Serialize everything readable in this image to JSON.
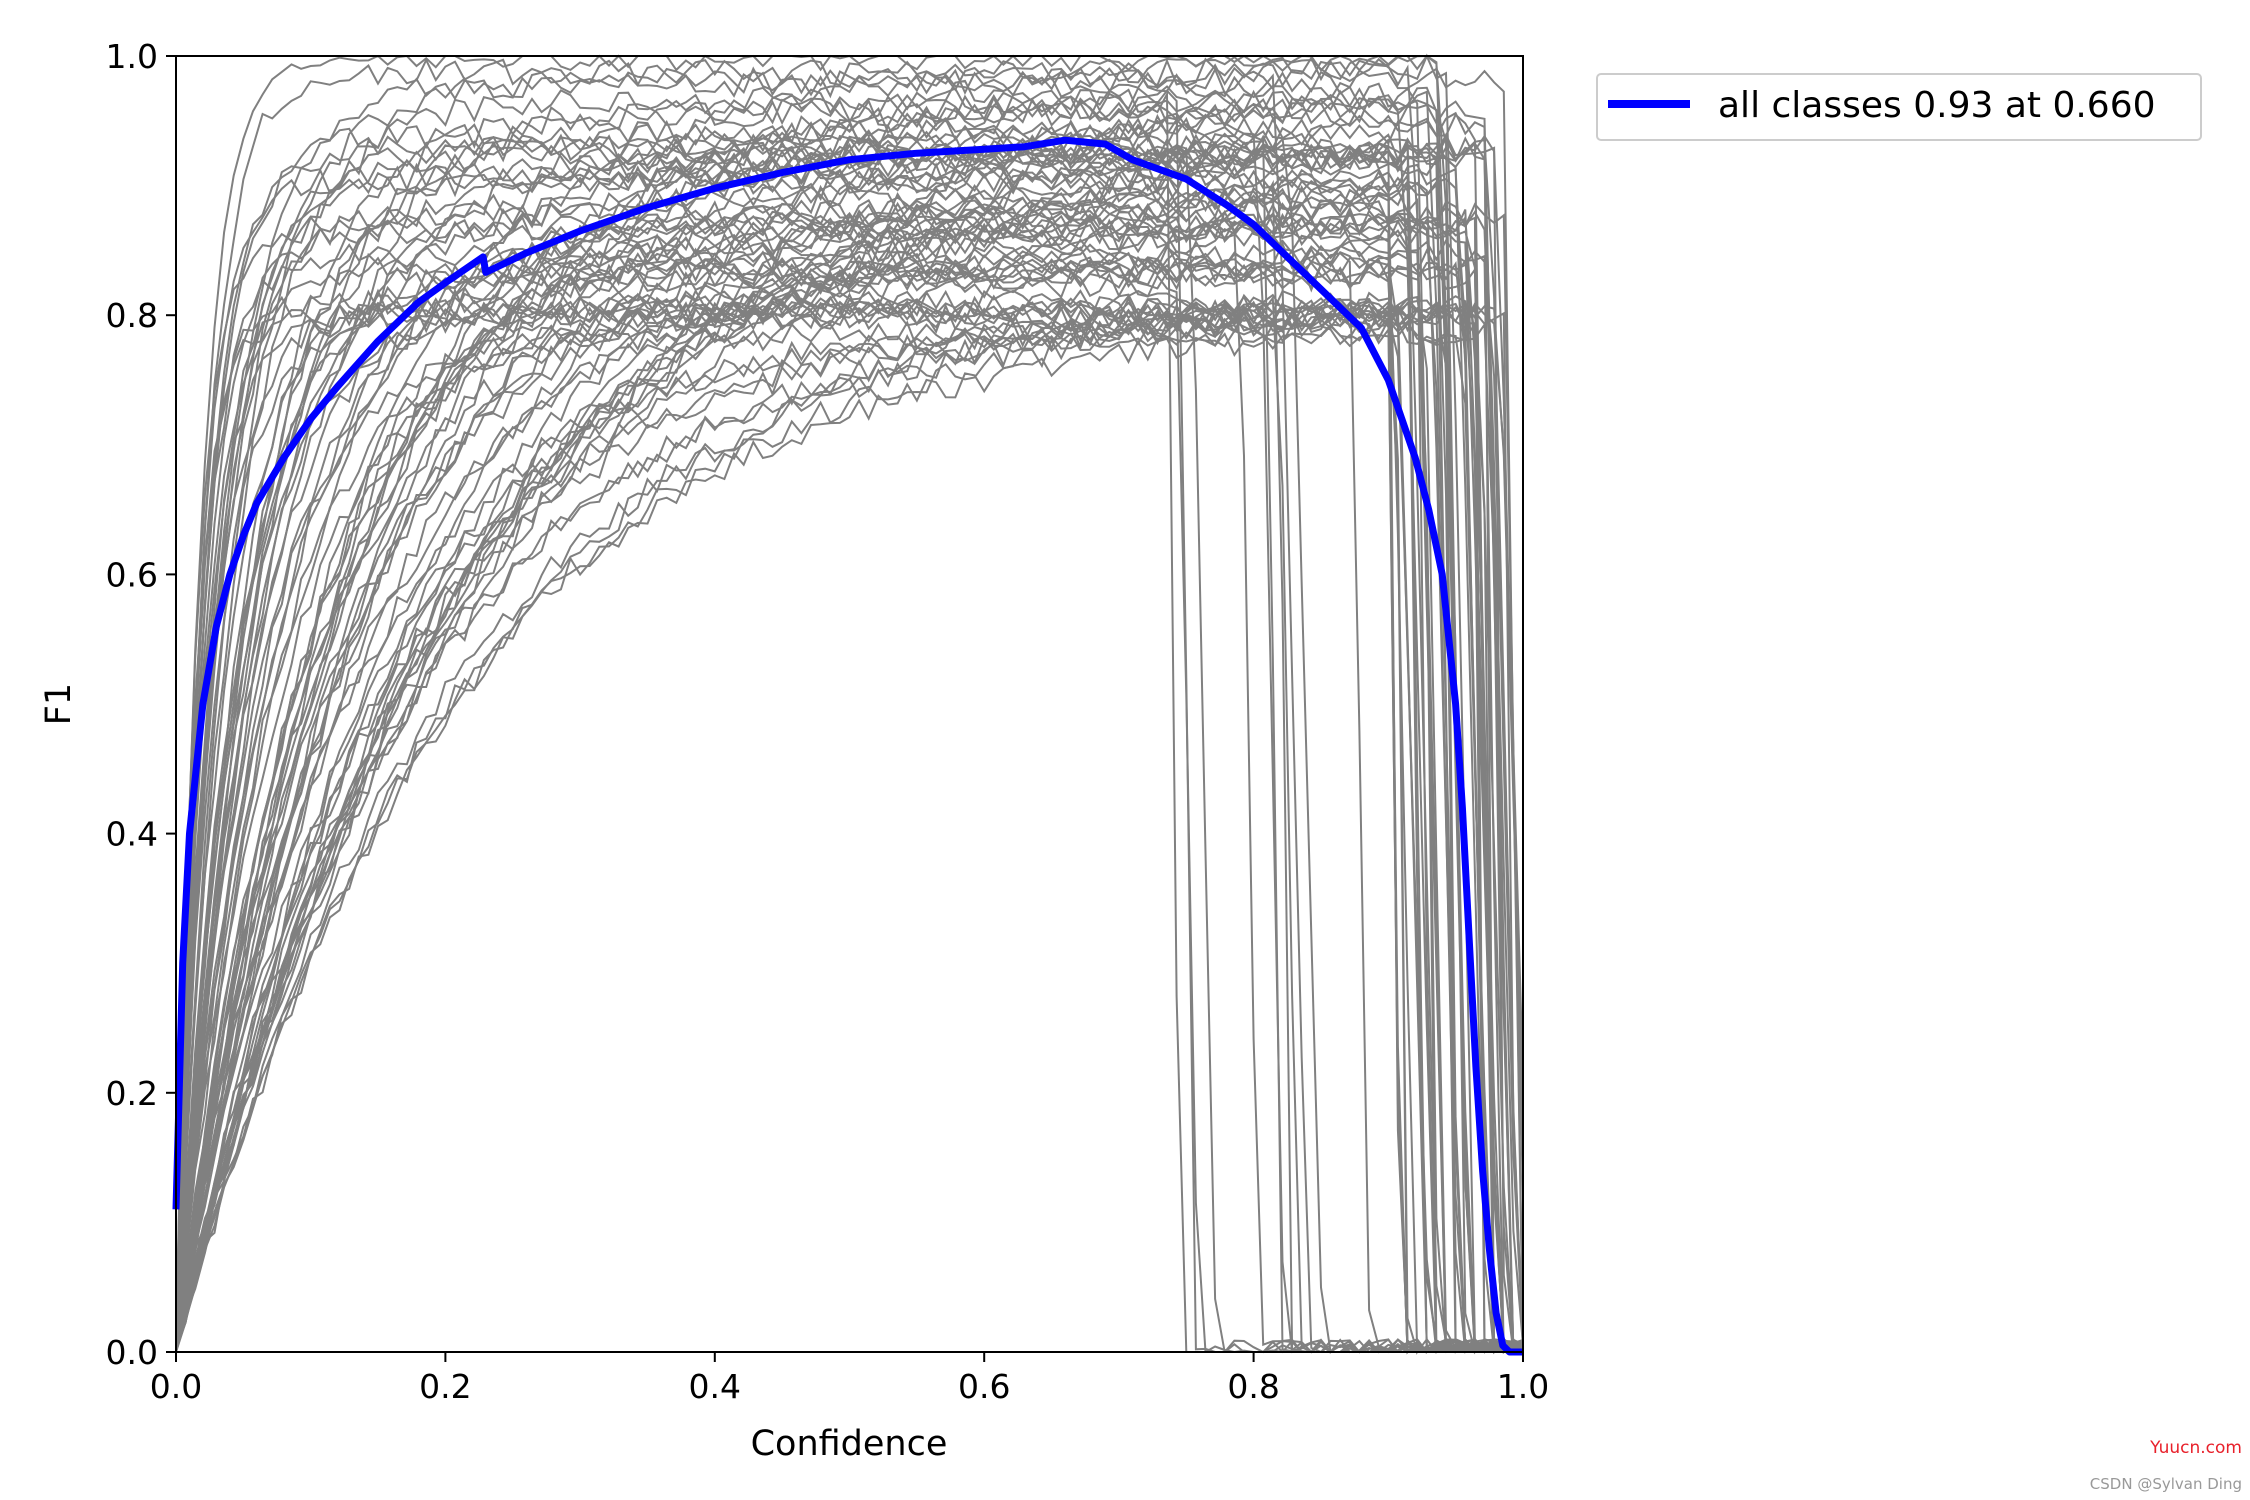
{
  "chart_data": {
    "type": "line",
    "xlabel": "Confidence",
    "ylabel": "F1",
    "xlim": [
      0,
      1
    ],
    "ylim": [
      0,
      1
    ],
    "xticks": [
      "0.0",
      "0.2",
      "0.4",
      "0.6",
      "0.8",
      "1.0"
    ],
    "yticks": [
      "0.0",
      "0.2",
      "0.4",
      "0.6",
      "0.8",
      "1.0"
    ],
    "grid": false,
    "legend_position": "outside-top-right",
    "colors": {
      "all_classes": "#0000ff",
      "per_class": "#808080"
    },
    "series": [
      {
        "name": "all classes 0.93 at 0.660",
        "x": [
          0,
          0.005,
          0.01,
          0.02,
          0.03,
          0.04,
          0.05,
          0.06,
          0.08,
          0.1,
          0.12,
          0.15,
          0.18,
          0.2,
          0.228,
          0.23,
          0.26,
          0.3,
          0.35,
          0.4,
          0.45,
          0.5,
          0.55,
          0.6,
          0.63,
          0.66,
          0.69,
          0.71,
          0.75,
          0.78,
          0.8,
          0.82,
          0.84,
          0.86,
          0.88,
          0.9,
          0.91,
          0.92,
          0.93,
          0.94,
          0.95,
          0.955,
          0.96,
          0.965,
          0.97,
          0.975,
          0.98,
          0.985,
          0.99,
          1.0
        ],
        "y": [
          0.11,
          0.3,
          0.4,
          0.5,
          0.56,
          0.6,
          0.63,
          0.655,
          0.69,
          0.72,
          0.745,
          0.78,
          0.81,
          0.825,
          0.845,
          0.833,
          0.848,
          0.865,
          0.883,
          0.898,
          0.91,
          0.92,
          0.925,
          0.928,
          0.93,
          0.935,
          0.932,
          0.92,
          0.905,
          0.885,
          0.87,
          0.85,
          0.83,
          0.81,
          0.79,
          0.75,
          0.72,
          0.69,
          0.65,
          0.6,
          0.5,
          0.42,
          0.32,
          0.22,
          0.14,
          0.08,
          0.03,
          0.005,
          0,
          0
        ]
      }
    ]
  },
  "watermark": {
    "site": "Yuucn.com",
    "credit": "CSDN @Sylvan Ding"
  }
}
